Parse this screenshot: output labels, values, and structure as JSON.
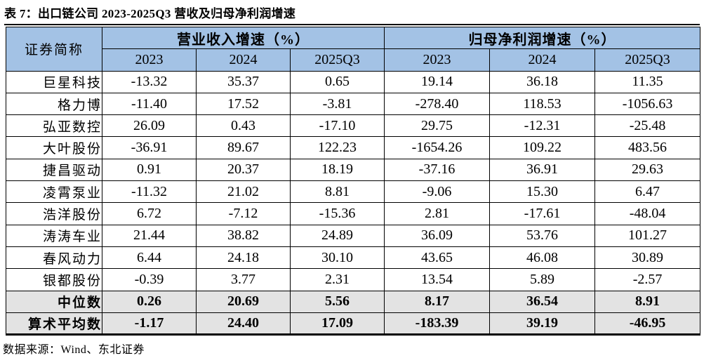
{
  "title": "表 7：出口链公司 2023-2025Q3 营收及归母净利润增速",
  "colors": {
    "header_bg": "#a3c2e5",
    "summary_bg": "#e3e3e3",
    "border": "#000000"
  },
  "table": {
    "corner_header": "证券简称",
    "groups": [
      {
        "label": "营业收入增速（%）",
        "years": [
          "2023",
          "2024",
          "2025Q3"
        ]
      },
      {
        "label": "归母净利润增速（%）",
        "years": [
          "2023",
          "2024",
          "2025Q3"
        ]
      }
    ],
    "rows": [
      {
        "name": "巨星科技",
        "revenue": [
          "-13.32",
          "35.37",
          "0.65"
        ],
        "profit": [
          "19.14",
          "36.18",
          "11.35"
        ],
        "summary": false
      },
      {
        "name": "格力博",
        "revenue": [
          "-11.40",
          "17.52",
          "-3.81"
        ],
        "profit": [
          "-278.40",
          "118.53",
          "-1056.63"
        ],
        "summary": false
      },
      {
        "name": "弘亚数控",
        "revenue": [
          "26.09",
          "0.43",
          "-17.10"
        ],
        "profit": [
          "29.75",
          "-12.31",
          "-25.48"
        ],
        "summary": false
      },
      {
        "name": "大叶股份",
        "revenue": [
          "-36.91",
          "89.67",
          "122.23"
        ],
        "profit": [
          "-1654.26",
          "109.22",
          "483.56"
        ],
        "summary": false
      },
      {
        "name": "捷昌驱动",
        "revenue": [
          "0.91",
          "20.37",
          "18.19"
        ],
        "profit": [
          "-37.16",
          "36.91",
          "29.63"
        ],
        "summary": false
      },
      {
        "name": "凌霄泵业",
        "revenue": [
          "-11.32",
          "21.02",
          "8.81"
        ],
        "profit": [
          "-9.06",
          "15.30",
          "6.47"
        ],
        "summary": false
      },
      {
        "name": "浩洋股份",
        "revenue": [
          "6.72",
          "-7.12",
          "-15.36"
        ],
        "profit": [
          "2.81",
          "-17.61",
          "-48.04"
        ],
        "summary": false
      },
      {
        "name": "涛涛车业",
        "revenue": [
          "21.44",
          "38.82",
          "24.89"
        ],
        "profit": [
          "36.09",
          "53.76",
          "101.27"
        ],
        "summary": false
      },
      {
        "name": "春风动力",
        "revenue": [
          "6.44",
          "24.18",
          "30.10"
        ],
        "profit": [
          "43.65",
          "46.08",
          "30.89"
        ],
        "summary": false
      },
      {
        "name": "银都股份",
        "revenue": [
          "-0.39",
          "3.77",
          "2.31"
        ],
        "profit": [
          "13.54",
          "5.89",
          "-2.57"
        ],
        "summary": false
      },
      {
        "name": "中位数",
        "revenue": [
          "0.26",
          "20.69",
          "5.56"
        ],
        "profit": [
          "8.17",
          "36.54",
          "8.91"
        ],
        "summary": true
      },
      {
        "name": "算术平均数",
        "revenue": [
          "-1.17",
          "24.40",
          "17.09"
        ],
        "profit": [
          "-183.39",
          "39.19",
          "-46.95"
        ],
        "summary": true
      }
    ]
  },
  "footer": {
    "source": "数据来源：Wind、东北证券"
  }
}
